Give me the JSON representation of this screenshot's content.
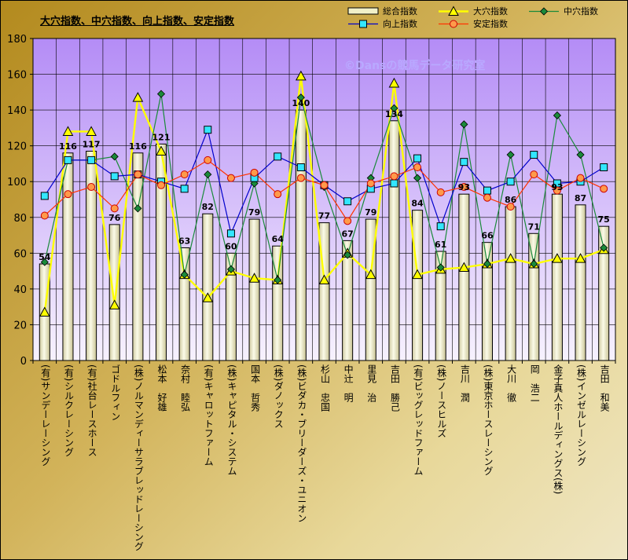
{
  "title": "大穴指数、中穴指数、向上指数、安定指数",
  "watermark": "©Dansの競馬データ研究室",
  "legend": [
    {
      "name": "総合指数",
      "kind": "bar",
      "color": "#f1f0c8"
    },
    {
      "name": "大穴指数",
      "kind": "triangle",
      "color": "#ffff00"
    },
    {
      "name": "中穴指数",
      "kind": "diamond",
      "color": "#1a8a3a"
    },
    {
      "name": "向上指数",
      "kind": "square",
      "color": "#0000cc"
    },
    {
      "name": "安定指数",
      "kind": "circle",
      "color": "#ff3300"
    }
  ],
  "chart_data": {
    "type": "bar",
    "ylim": [
      0,
      180
    ],
    "yticks": [
      0,
      20,
      40,
      60,
      80,
      100,
      120,
      140,
      160,
      180
    ],
    "grid": true,
    "legend_position": "top-right",
    "categories": [
      "(有)サンデーレーシング",
      "(有)シルクレーシング",
      "(有)社台レースホース",
      "ゴドルフィン",
      "(株)ノルマンディーサラブレッドレーシング",
      "松本　好雄",
      "奈村　睦弘",
      "(有)キャロットファーム",
      "(株)キャピタル・システム",
      "国本　哲秀",
      "(株)ダノックス",
      "(株)ビダカ・ブリーダーズ・ユニオン",
      "杉山　忠国",
      "中辻　明",
      "里見　治",
      "吉田　勝己",
      "(有)ビッグレッドファーム",
      "(株)ノースヒルズ",
      "吉川　潤",
      "(株)東京ホースレーシング",
      "大川　徹",
      "岡　浩二",
      "金子真人ホールディングス(株)",
      "(株)インゼルレーシング",
      "吉田　和美"
    ],
    "series": [
      {
        "name": "総合指数",
        "kind": "bar",
        "color": "#f1f0c8",
        "values": [
          54,
          116,
          117,
          76,
          116,
          121,
          63,
          82,
          60,
          79,
          64,
          140,
          77,
          67,
          79,
          134,
          84,
          61,
          93,
          66,
          86,
          71,
          93,
          87,
          75
        ]
      },
      {
        "name": "大穴指数",
        "kind": "line",
        "marker": "triangle",
        "color": "#ffff00",
        "values": [
          27,
          128,
          128,
          31,
          147,
          117,
          48,
          35,
          50,
          46,
          45,
          159,
          45,
          60,
          48,
          155,
          48,
          51,
          52,
          54,
          57,
          54,
          57,
          57,
          62
        ]
      },
      {
        "name": "中穴指数",
        "kind": "line",
        "marker": "diamond",
        "color": "#1a8a3a",
        "values": [
          55,
          112,
          112,
          114,
          85,
          149,
          48,
          104,
          51,
          99,
          45,
          147,
          97,
          59,
          102,
          141,
          102,
          52,
          132,
          54,
          115,
          54,
          137,
          115,
          63
        ]
      },
      {
        "name": "向上指数",
        "kind": "line",
        "marker": "square",
        "color": "#0000cc",
        "values": [
          92,
          112,
          112,
          103,
          104,
          100,
          96,
          129,
          71,
          102,
          114,
          108,
          98,
          89,
          96,
          99,
          113,
          75,
          111,
          95,
          100,
          115,
          99,
          100,
          108
        ]
      },
      {
        "name": "安定指数",
        "kind": "line",
        "marker": "circle",
        "color": "#ff3300",
        "values": [
          81,
          93,
          97,
          85,
          104,
          98,
          104,
          112,
          102,
          105,
          93,
          102,
          98,
          78,
          99,
          103,
          108,
          94,
          97,
          91,
          86,
          104,
          95,
          102,
          96
        ]
      }
    ]
  }
}
